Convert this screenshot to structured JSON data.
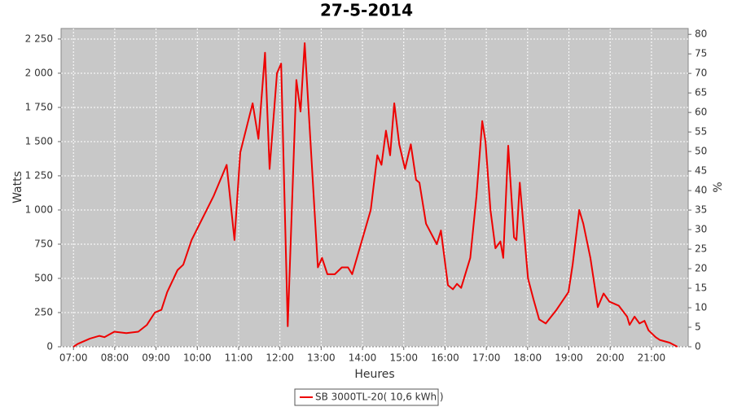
{
  "chart_data": {
    "type": "line",
    "title": "27-5-2014",
    "xlabel": "Heures",
    "ylabel": "Watts",
    "y2label": "%",
    "xlim": [
      6.7,
      21.89
    ],
    "xticks": [
      {
        "value": 7,
        "label": "07:00"
      },
      {
        "value": 8,
        "label": "08:00"
      },
      {
        "value": 9,
        "label": "09:00"
      },
      {
        "value": 10,
        "label": "10:00"
      },
      {
        "value": 11,
        "label": "11:00"
      },
      {
        "value": 12,
        "label": "12:00"
      },
      {
        "value": 13,
        "label": "13:00"
      },
      {
        "value": 14,
        "label": "14:00"
      },
      {
        "value": 15,
        "label": "15:00"
      },
      {
        "value": 16,
        "label": "16:00"
      },
      {
        "value": 17,
        "label": "17:00"
      },
      {
        "value": 18,
        "label": "18:00"
      },
      {
        "value": 19,
        "label": "19:00"
      },
      {
        "value": 20,
        "label": "20:00"
      },
      {
        "value": 21,
        "label": "21:00"
      }
    ],
    "ylim": [
      0,
      2327
    ],
    "yticks": [
      0,
      250,
      500,
      750,
      {
        "value": 1000,
        "label": "1 000"
      },
      {
        "value": 1250,
        "label": "1 250"
      },
      {
        "value": 1500,
        "label": "1 500"
      },
      {
        "value": 1750,
        "label": "1 750"
      },
      {
        "value": 2000,
        "label": "2 000"
      },
      {
        "value": 2250,
        "label": "2 250"
      }
    ],
    "y2lim": [
      0,
      81.5
    ],
    "y2ticks": [
      0,
      5,
      10,
      15,
      20,
      25,
      30,
      35,
      40,
      45,
      50,
      55,
      60,
      65,
      70,
      75,
      80
    ],
    "grid": true,
    "x": [
      7.0,
      7.1,
      7.4,
      7.63,
      7.75,
      7.99,
      8.28,
      8.57,
      8.78,
      8.97,
      9.13,
      9.27,
      9.52,
      9.66,
      9.86,
      10.39,
      10.71,
      10.9,
      11.04,
      11.34,
      11.48,
      11.64,
      11.75,
      11.93,
      12.03,
      12.19,
      12.4,
      12.5,
      12.6,
      12.92,
      13.02,
      13.15,
      13.33,
      13.5,
      13.65,
      13.75,
      14.2,
      14.36,
      14.46,
      14.57,
      14.67,
      14.77,
      14.89,
      15.03,
      15.17,
      15.3,
      15.38,
      15.54,
      15.8,
      15.9,
      16.07,
      16.19,
      16.29,
      16.39,
      16.61,
      16.76,
      16.9,
      16.98,
      17.1,
      17.22,
      17.34,
      17.41,
      17.53,
      17.67,
      17.73,
      17.81,
      18.01,
      18.14,
      18.28,
      18.44,
      18.7,
      18.99,
      19.09,
      19.25,
      19.35,
      19.52,
      19.7,
      19.84,
      19.98,
      20.21,
      20.41,
      20.47,
      20.59,
      20.71,
      20.83,
      20.93,
      21.1,
      21.2,
      21.44,
      21.63
    ],
    "series": [
      {
        "name": "SB 3000TL-20( 10,6 kWh )",
        "color": "#ee0000",
        "values": [
          0,
          20,
          60,
          80,
          70,
          110,
          100,
          110,
          160,
          250,
          270,
          400,
          560,
          600,
          780,
          1100,
          1330,
          780,
          1420,
          1780,
          1520,
          2150,
          1300,
          2000,
          2070,
          150,
          1950,
          1720,
          2220,
          580,
          650,
          530,
          530,
          580,
          580,
          530,
          1000,
          1400,
          1330,
          1580,
          1400,
          1780,
          1480,
          1300,
          1480,
          1220,
          1200,
          900,
          750,
          850,
          450,
          420,
          460,
          430,
          650,
          1100,
          1650,
          1500,
          1000,
          720,
          770,
          650,
          1470,
          800,
          780,
          1200,
          500,
          350,
          200,
          170,
          270,
          400,
          600,
          1000,
          900,
          650,
          290,
          390,
          330,
          300,
          220,
          160,
          220,
          170,
          190,
          120,
          70,
          50,
          30,
          0
        ]
      }
    ]
  }
}
